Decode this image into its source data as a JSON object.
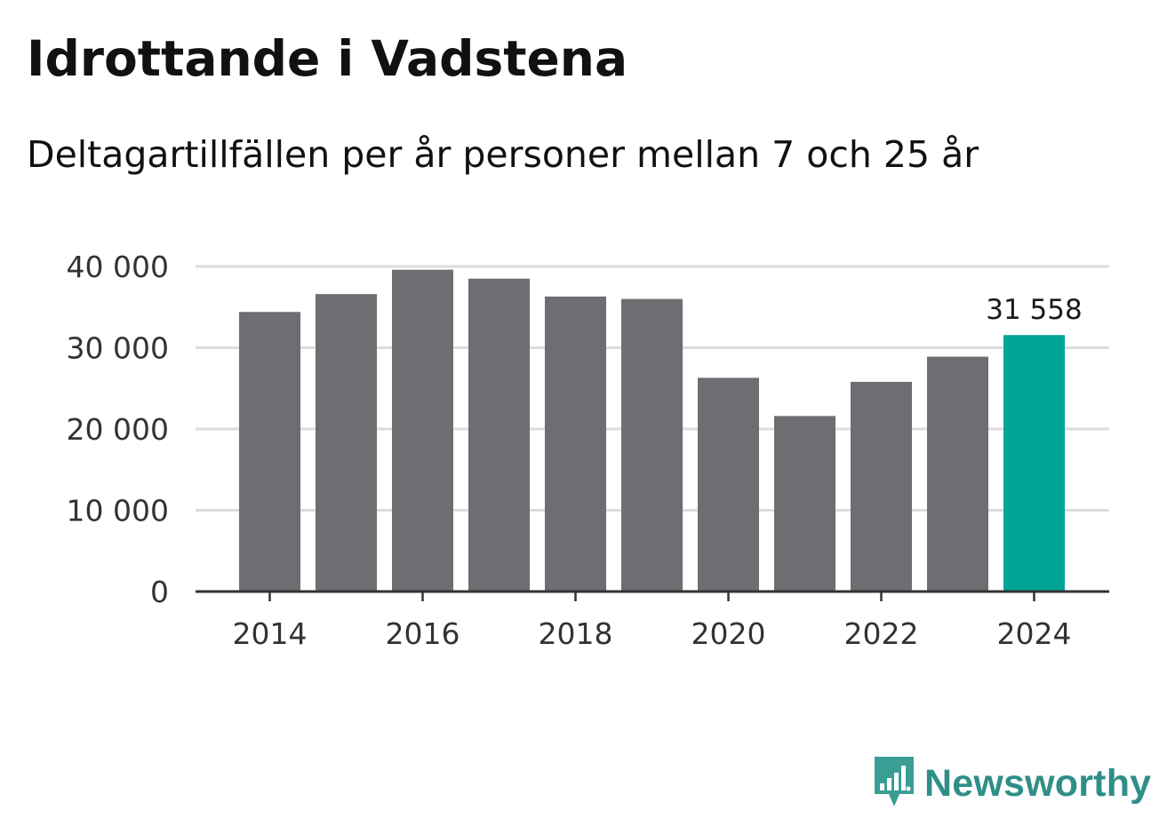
{
  "title": "Idrottande i Vadstena",
  "subtitle": "Deltagartillfällen per år personer mellan 7 och 25 år",
  "colors": {
    "bar": "#6e6d72",
    "highlight": "#00a498",
    "grid": "#dcdcdc",
    "axis": "#333333",
    "brand": "#2f8f87"
  },
  "brand": {
    "name": "Newsworthy",
    "icon": "bar-chart-speech-bubble-icon"
  },
  "chart_data": {
    "type": "bar",
    "title": "Idrottande i Vadstena",
    "subtitle": "Deltagartillfällen per år personer mellan 7 och 25 år",
    "categories": [
      "2014",
      "2015",
      "2016",
      "2017",
      "2018",
      "2019",
      "2020",
      "2021",
      "2022",
      "2023",
      "2024"
    ],
    "values": [
      34400,
      36600,
      39600,
      38500,
      36300,
      36000,
      26300,
      21600,
      25800,
      28900,
      31558
    ],
    "highlight_index": 10,
    "data_labels": [
      {
        "index": 10,
        "text": "31 558"
      }
    ],
    "x_tick_labels": [
      "2014",
      "2016",
      "2018",
      "2020",
      "2022",
      "2024"
    ],
    "y_ticks": [
      0,
      10000,
      20000,
      30000,
      40000
    ],
    "y_tick_labels": [
      "0",
      "10 000",
      "20 000",
      "30 000",
      "40 000"
    ],
    "ylim": [
      0,
      40000
    ],
    "xlabel": "",
    "ylabel": "",
    "grid": true,
    "legend": "none"
  }
}
